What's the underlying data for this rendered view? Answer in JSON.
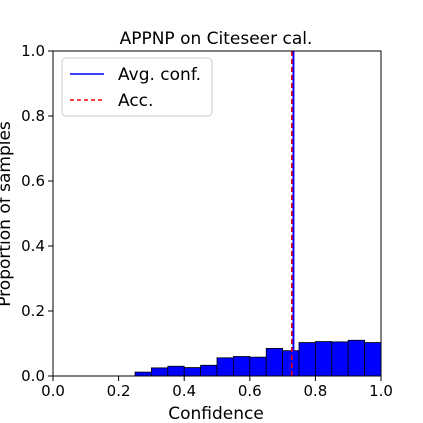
{
  "chart_data": {
    "type": "bar",
    "title": "APPNP on Citeseer cal.",
    "xlabel": "Confidence",
    "ylabel": "Proportion of samples",
    "xlim": [
      0.0,
      1.0
    ],
    "ylim": [
      0.0,
      1.0
    ],
    "xticks": [
      "0.0",
      "0.2",
      "0.4",
      "0.6",
      "0.8",
      "1.0"
    ],
    "yticks": [
      "0.0",
      "0.2",
      "0.4",
      "0.6",
      "0.8",
      "1.0"
    ],
    "bin_edges": [
      0.25,
      0.3,
      0.35,
      0.4,
      0.45,
      0.5,
      0.55,
      0.6,
      0.65,
      0.7,
      0.75,
      0.8,
      0.85,
      0.9,
      0.95,
      1.0
    ],
    "values": [
      0.012,
      0.025,
      0.03,
      0.026,
      0.033,
      0.056,
      0.06,
      0.058,
      0.085,
      0.078,
      0.103,
      0.106,
      0.105,
      0.11,
      0.103
    ],
    "bar_color": "#0000ff",
    "avg_conf": 0.733,
    "accuracy": 0.728,
    "legend": {
      "position": "upper-left",
      "entries": [
        {
          "label": "Avg. conf.",
          "color": "#0000ff",
          "style": "solid"
        },
        {
          "label": "Acc.",
          "color": "#ff0000",
          "style": "dashed"
        }
      ]
    }
  }
}
